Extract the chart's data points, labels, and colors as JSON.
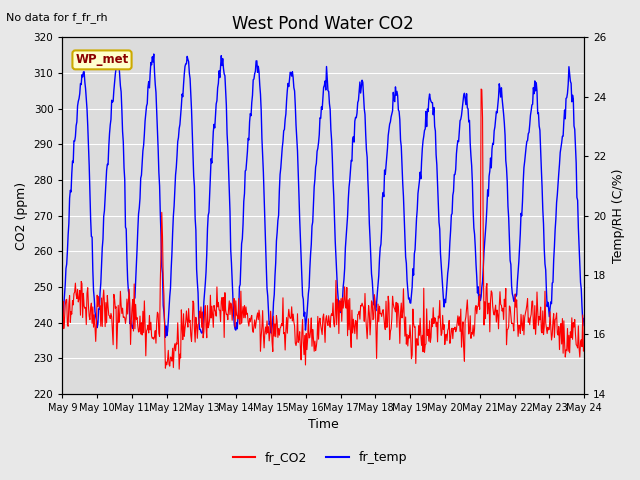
{
  "title": "West Pond Water CO2",
  "annotation": "No data for f_fr_rh",
  "xlabel": "Time",
  "ylabel_left": "CO2 (ppm)",
  "ylabel_right": "Temp/RH (C/%)",
  "legend_label": "WP_met",
  "series_labels": [
    "fr_CO2",
    "fr_temp"
  ],
  "xlim": [
    9,
    24
  ],
  "ylim_left": [
    220,
    320
  ],
  "ylim_right": [
    14,
    26
  ],
  "yticks_left": [
    220,
    230,
    240,
    250,
    260,
    270,
    280,
    290,
    300,
    310,
    320
  ],
  "yticks_right": [
    14,
    16,
    18,
    20,
    22,
    24,
    26
  ],
  "xtick_positions": [
    9,
    10,
    11,
    12,
    13,
    14,
    15,
    16,
    17,
    18,
    19,
    20,
    21,
    22,
    23,
    24
  ],
  "xtick_labels": [
    "May 9",
    "May 10",
    "May 11",
    "May 12",
    "May 13",
    "May 14",
    "May 15",
    "May 16",
    "May 17",
    "May 18",
    "May 19",
    "May 20",
    "May 21",
    "May 22",
    "May 23",
    "May 24"
  ],
  "fig_bg": "#e8e8e8",
  "plot_bg": "#dcdcdc",
  "grid_color": "#ffffff",
  "title_fontsize": 12,
  "label_fontsize": 9,
  "tick_fontsize": 7.5,
  "annot_fontsize": 8
}
